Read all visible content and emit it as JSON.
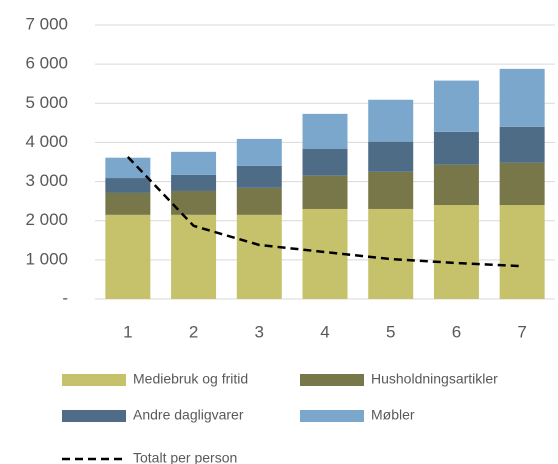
{
  "chart_data": {
    "type": "stacked_bar_line",
    "categories": [
      "1",
      "2",
      "3",
      "4",
      "5",
      "6",
      "7"
    ],
    "series": [
      {
        "name": "Mediebruk og fritid",
        "color": "#c5c26b",
        "kind": "bar",
        "values": [
          2150,
          2150,
          2150,
          2300,
          2300,
          2400,
          2400
        ]
      },
      {
        "name": "Husholdningsartikler",
        "color": "#78774a",
        "kind": "bar",
        "values": [
          560,
          610,
          690,
          850,
          950,
          1030,
          1080
        ]
      },
      {
        "name": "Andre dagligvarer",
        "color": "#4f6c86",
        "kind": "bar",
        "values": [
          380,
          410,
          560,
          690,
          770,
          840,
          920
        ]
      },
      {
        "name": "Møbler",
        "color": "#7ba7cc",
        "kind": "bar",
        "values": [
          520,
          590,
          690,
          890,
          1070,
          1310,
          1480
        ]
      },
      {
        "name": "Totalt per person",
        "color": "#000000",
        "kind": "line",
        "values": [
          3630,
          1870,
          1380,
          1200,
          1020,
          920,
          840
        ]
      }
    ],
    "ylim": [
      0,
      7000
    ],
    "yticks": [
      {
        "value": 0,
        "label": "-"
      },
      {
        "value": 1000,
        "label": "1 000"
      },
      {
        "value": 2000,
        "label": "2 000"
      },
      {
        "value": 3000,
        "label": "3 000"
      },
      {
        "value": 4000,
        "label": "4 000"
      },
      {
        "value": 5000,
        "label": "5 000"
      },
      {
        "value": 6000,
        "label": "6 000"
      },
      {
        "value": 7000,
        "label": "7 000"
      }
    ],
    "grid": true
  }
}
